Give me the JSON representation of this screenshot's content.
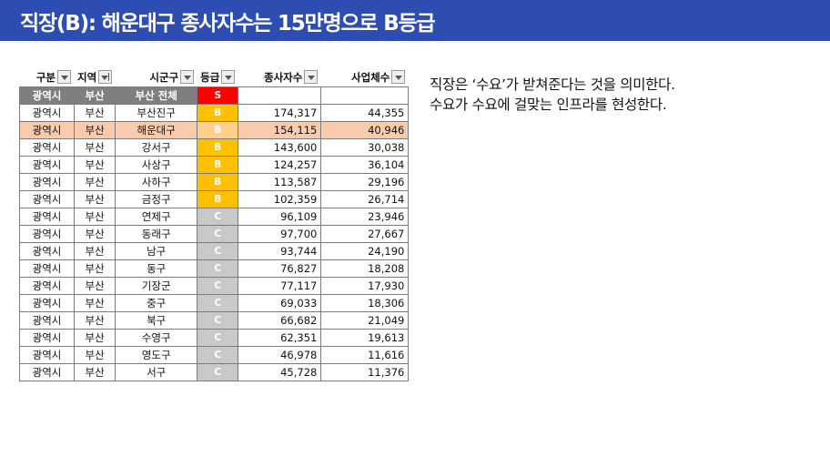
{
  "header": {
    "title": "직장(B): 해운대구 종사자수는 15만명으로 B등급"
  },
  "table": {
    "columns": [
      {
        "label": "구분"
      },
      {
        "label": "지역"
      },
      {
        "label": "시군구"
      },
      {
        "label": "등급"
      },
      {
        "label": "종사자수"
      },
      {
        "label": "사업체수"
      }
    ],
    "total_row": {
      "type": "광역시",
      "region": "부산",
      "district": "부산 전체",
      "grade": "S",
      "workers": "",
      "businesses": ""
    },
    "rows": [
      {
        "type": "광역시",
        "region": "부산",
        "district": "부산진구",
        "grade": "B",
        "workers": "174,317",
        "businesses": "44,355"
      },
      {
        "type": "광역시",
        "region": "부산",
        "district": "해운대구",
        "grade": "B",
        "workers": "154,115",
        "businesses": "40,946"
      },
      {
        "type": "광역시",
        "region": "부산",
        "district": "강서구",
        "grade": "B",
        "workers": "143,600",
        "businesses": "30,038"
      },
      {
        "type": "광역시",
        "region": "부산",
        "district": "사상구",
        "grade": "B",
        "workers": "124,257",
        "businesses": "36,104"
      },
      {
        "type": "광역시",
        "region": "부산",
        "district": "사하구",
        "grade": "B",
        "workers": "113,587",
        "businesses": "29,196"
      },
      {
        "type": "광역시",
        "region": "부산",
        "district": "금정구",
        "grade": "B",
        "workers": "102,359",
        "businesses": "26,714"
      },
      {
        "type": "광역시",
        "region": "부산",
        "district": "연제구",
        "grade": "C",
        "workers": "96,109",
        "businesses": "23,946"
      },
      {
        "type": "광역시",
        "region": "부산",
        "district": "동래구",
        "grade": "C",
        "workers": "97,700",
        "businesses": "27,667"
      },
      {
        "type": "광역시",
        "region": "부산",
        "district": "남구",
        "grade": "C",
        "workers": "93,744",
        "businesses": "24,190"
      },
      {
        "type": "광역시",
        "region": "부산",
        "district": "동구",
        "grade": "C",
        "workers": "76,827",
        "businesses": "18,208"
      },
      {
        "type": "광역시",
        "region": "부산",
        "district": "기장군",
        "grade": "C",
        "workers": "77,117",
        "businesses": "17,930"
      },
      {
        "type": "광역시",
        "region": "부산",
        "district": "중구",
        "grade": "C",
        "workers": "69,033",
        "businesses": "18,306"
      },
      {
        "type": "광역시",
        "region": "부산",
        "district": "북구",
        "grade": "C",
        "workers": "66,682",
        "businesses": "21,049"
      },
      {
        "type": "광역시",
        "region": "부산",
        "district": "수영구",
        "grade": "C",
        "workers": "62,351",
        "businesses": "19,613"
      },
      {
        "type": "광역시",
        "region": "부산",
        "district": "영도구",
        "grade": "C",
        "workers": "46,978",
        "businesses": "11,616"
      },
      {
        "type": "광역시",
        "region": "부산",
        "district": "서구",
        "grade": "C",
        "workers": "45,728",
        "businesses": "11,376"
      }
    ]
  },
  "notes": {
    "line1": "직장은 ‘수요’가 받쳐준다는 것을 의미한다.",
    "line2": "수요가 수요에 걸맞는 인프라를 현성한다."
  },
  "colors": {
    "header_bg": "#2e4db3",
    "grade_S": "#ff0000",
    "grade_B": "#ffc000",
    "grade_C": "#c9c9c9",
    "highlight_row": "#f8cbad",
    "total_row": "#7f7f7f"
  }
}
